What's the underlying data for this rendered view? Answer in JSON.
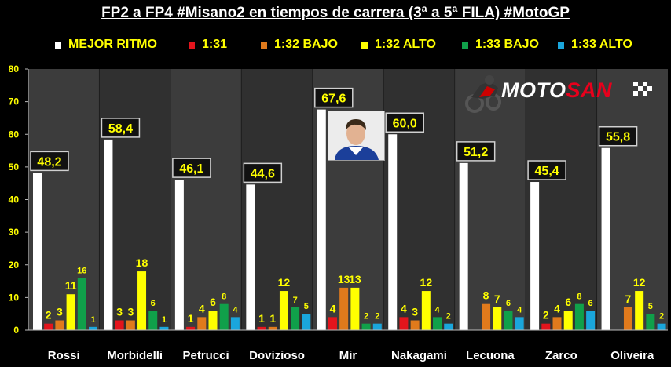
{
  "chart_data": {
    "type": "bar",
    "title": "FP2 a FP4 #Misano2 en tiempos de carrera (3ª a 5ª FILA) #MotoGP",
    "ylim": [
      0,
      80
    ],
    "yticks": [
      "0",
      "10",
      "20",
      "30",
      "40",
      "50",
      "60",
      "70",
      "80"
    ],
    "grid": false,
    "legend_position": "top",
    "categories": [
      "Rossi",
      "Morbidelli",
      "Petrucci",
      "Dovizioso",
      "Mir",
      "Nakagami",
      "Lecuona",
      "Zarco",
      "Oliveira"
    ],
    "series": [
      {
        "name": "MEJOR RITMO",
        "color": "#ffffff",
        "values": [
          48.2,
          58.4,
          46.1,
          44.6,
          67.6,
          60.0,
          51.2,
          45.4,
          55.8
        ],
        "labels": [
          "48,2",
          "58,4",
          "46,1",
          "44,6",
          "67,6",
          "60,0",
          "51,2",
          "45,4",
          "55,8"
        ]
      },
      {
        "name": "1:31",
        "color": "#e3141c",
        "values": [
          2,
          3,
          1,
          1,
          4,
          4,
          0,
          2,
          0
        ],
        "labels": [
          "2",
          "3",
          "1",
          "1",
          "4",
          "4",
          "",
          "2",
          ""
        ]
      },
      {
        "name": "1:32 BAJO",
        "color": "#e07a1c",
        "values": [
          3,
          3,
          4,
          1,
          13,
          3,
          8,
          4,
          7
        ],
        "labels": [
          "3",
          "3",
          "4",
          "1",
          "13",
          "3",
          "8",
          "4",
          "7"
        ]
      },
      {
        "name": "1:32 ALTO",
        "color": "#ffff00",
        "values": [
          11,
          18,
          6,
          12,
          13,
          12,
          7,
          6,
          12
        ],
        "labels": [
          "11",
          "18",
          "6",
          "12",
          "13",
          "12",
          "7",
          "6",
          "12"
        ]
      },
      {
        "name": "1:33 BAJO",
        "color": "#10a04a",
        "values": [
          16,
          6,
          8,
          7,
          2,
          4,
          6,
          8,
          5
        ],
        "labels": [
          "16",
          "6",
          "8",
          "7",
          "2",
          "4",
          "6",
          "8",
          "5"
        ]
      },
      {
        "name": "1:33 ALTO",
        "color": "#1aa6dc",
        "values": [
          1,
          1,
          4,
          5,
          2,
          2,
          4,
          6,
          2
        ],
        "labels": [
          "1",
          "1",
          "4",
          "5",
          "2",
          "2",
          "4",
          "6",
          "2"
        ]
      }
    ]
  },
  "logo": {
    "prefix": "MOTO",
    "accent": "SAN"
  }
}
